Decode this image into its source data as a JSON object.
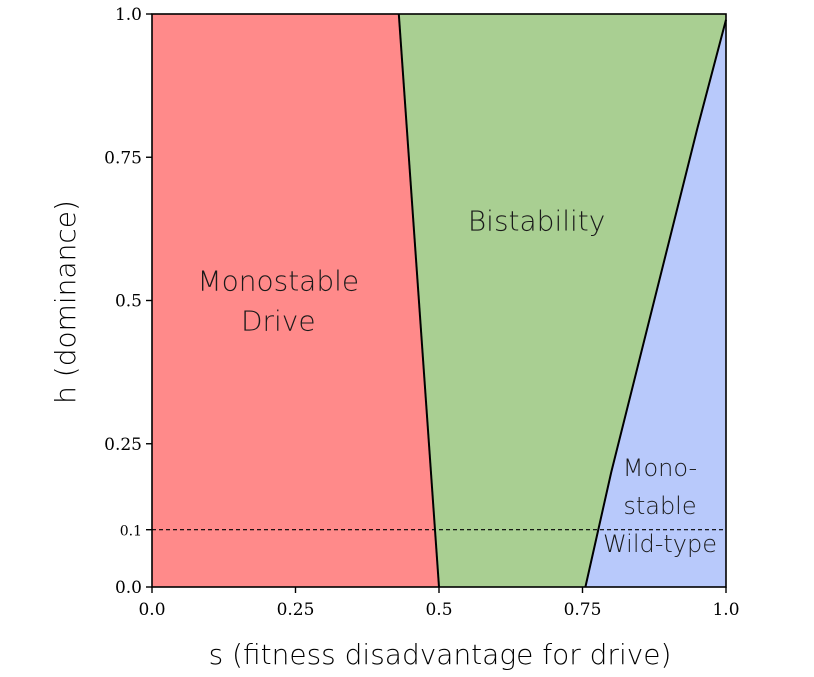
{
  "chart_data": {
    "type": "area",
    "xlabel": "s (fitness disadvantage for drive)",
    "ylabel": "h (dominance)",
    "xlim": [
      0,
      1
    ],
    "ylim": [
      0,
      1
    ],
    "x_ticks": [
      {
        "value": 0,
        "label": "0.0"
      },
      {
        "value": 0.25,
        "label": "0.25"
      },
      {
        "value": 0.5,
        "label": "0.5"
      },
      {
        "value": 0.75,
        "label": "0.75"
      },
      {
        "value": 1.0,
        "label": "1.0"
      }
    ],
    "y_ticks": [
      {
        "value": 0,
        "label": "0.0"
      },
      {
        "value": 0.1,
        "label": "0.1"
      },
      {
        "value": 0.25,
        "label": "0.25"
      },
      {
        "value": 0.5,
        "label": "0.5"
      },
      {
        "value": 0.75,
        "label": "0.75"
      },
      {
        "value": 1.0,
        "label": "1.0"
      }
    ],
    "grid": false,
    "reference_line": {
      "h": 0.1,
      "style": "dashed"
    },
    "regions": [
      {
        "name": "Monostable Drive",
        "label_lines": [
          "Monostable",
          "Drive"
        ],
        "color": "#ff8a8a",
        "label_at": [
          0.22,
          0.5
        ],
        "polygon": [
          [
            0,
            0
          ],
          [
            0.5,
            0
          ],
          [
            0.43,
            1.0
          ],
          [
            0,
            1.0
          ]
        ]
      },
      {
        "name": "Bistability",
        "label_lines": [
          "Bistability"
        ],
        "color": "#a9cf92",
        "label_at": [
          0.67,
          0.64
        ],
        "polygon": [
          [
            0.5,
            0
          ],
          [
            0.755,
            0
          ],
          [
            0.8,
            0.2
          ],
          [
            0.85,
            0.4
          ],
          [
            0.9,
            0.6
          ],
          [
            0.95,
            0.8
          ],
          [
            1.0,
            0.99
          ],
          [
            1.0,
            1.0
          ],
          [
            0.43,
            1.0
          ]
        ]
      },
      {
        "name": "Monostable Wild-type",
        "label_lines": [
          "Mono-",
          "stable",
          "Wild-type"
        ],
        "color": "#b8c9fb",
        "label_at": [
          0.885,
          0.145
        ],
        "polygon": [
          [
            0.755,
            0
          ],
          [
            0.8,
            0.2
          ],
          [
            0.85,
            0.4
          ],
          [
            0.9,
            0.6
          ],
          [
            0.95,
            0.8
          ],
          [
            1.0,
            0.99
          ],
          [
            1.0,
            0
          ]
        ]
      }
    ],
    "boundaries": [
      {
        "name": "drive-boundary",
        "points": [
          [
            0.43,
            1.0
          ],
          [
            0.5,
            0
          ]
        ]
      },
      {
        "name": "wildtype-boundary",
        "points": [
          [
            0.755,
            0
          ],
          [
            0.8,
            0.2
          ],
          [
            0.85,
            0.4
          ],
          [
            0.9,
            0.6
          ],
          [
            0.95,
            0.8
          ],
          [
            1.0,
            0.99
          ]
        ]
      }
    ]
  }
}
